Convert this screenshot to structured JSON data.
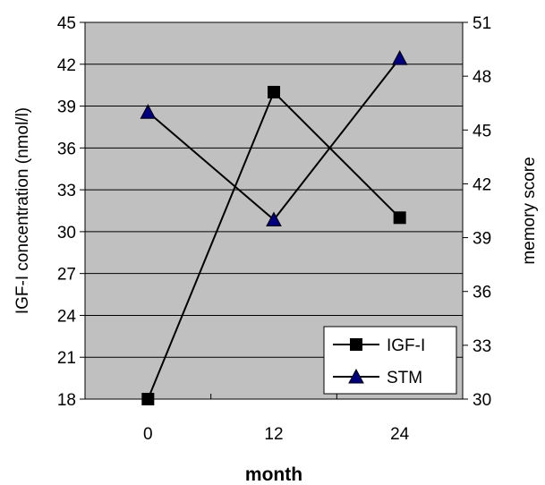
{
  "chart_data": {
    "type": "line",
    "categories": [
      "0",
      "12",
      "24"
    ],
    "x": [
      0,
      12,
      24
    ],
    "xlabel": "month",
    "ylabel": "IGF-I concentration (nmol/l)",
    "ylabel_right": "memory score",
    "ylim": [
      18,
      45
    ],
    "ylim_right": [
      30,
      51
    ],
    "yticks": [
      "18",
      "21",
      "24",
      "27",
      "30",
      "33",
      "36",
      "39",
      "42",
      "45"
    ],
    "yticks_right": [
      "30",
      "33",
      "36",
      "39",
      "42",
      "45",
      "48",
      "51"
    ],
    "grid": true,
    "plot_background": "#c0c0c0",
    "legend_position": "bottom-right",
    "series": [
      {
        "name": "IGF-I",
        "axis": "left",
        "marker": "square",
        "values": [
          18,
          40,
          31
        ]
      },
      {
        "name": "STM",
        "axis": "right",
        "marker": "triangle",
        "marker_color": "#000080",
        "values": [
          46,
          40,
          49
        ]
      }
    ]
  }
}
